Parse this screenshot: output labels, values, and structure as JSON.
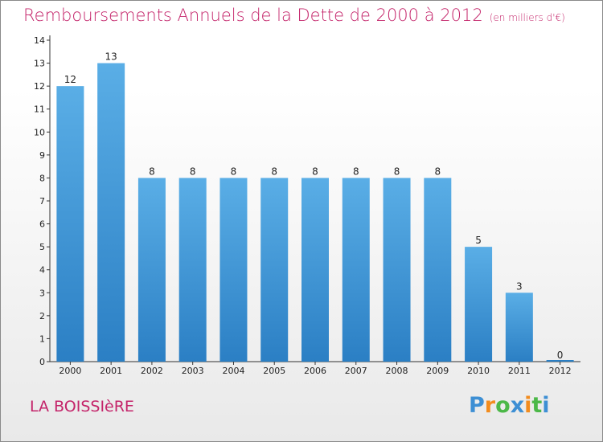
{
  "title": "Remboursements Annuels de la Dette de 2000 à 2012",
  "unit": "(en milliers d'€)",
  "commune": "LA BOISSIèRE",
  "logo": {
    "letters": [
      "P",
      "r",
      "o",
      "x",
      "i",
      "t",
      "i"
    ],
    "colors": [
      "#3d8fd4",
      "#f28c1e",
      "#4cb848",
      "#3d8fd4",
      "#f28c1e",
      "#4cb848",
      "#3d8fd4"
    ]
  },
  "colors": {
    "bar_top": "#5aaee6",
    "bar_bottom": "#2b7fc4",
    "accent": "#c4246a"
  },
  "chart_data": {
    "type": "bar",
    "categories": [
      "2000",
      "2001",
      "2002",
      "2003",
      "2004",
      "2005",
      "2006",
      "2007",
      "2008",
      "2009",
      "2010",
      "2011",
      "2012"
    ],
    "values": [
      12,
      13,
      8,
      8,
      8,
      8,
      8,
      8,
      8,
      8,
      5,
      3,
      0
    ],
    "ylim": [
      0,
      14
    ],
    "yticks": [
      0,
      1,
      2,
      3,
      4,
      5,
      6,
      7,
      8,
      9,
      10,
      11,
      12,
      13,
      14
    ],
    "grid": false,
    "data_labels": true
  }
}
